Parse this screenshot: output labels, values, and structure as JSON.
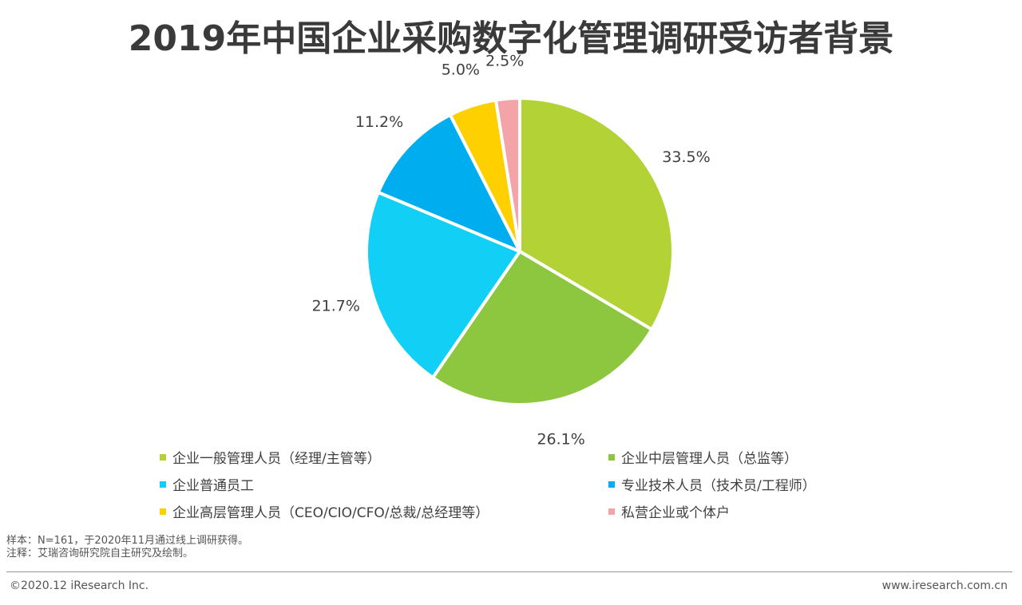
{
  "title": "2019年中国企业采购数字化管理调研受访者背景",
  "chart_data": {
    "type": "pie",
    "title": "2019年中国企业采购数字化管理调研受访者背景",
    "categories": [
      "企业一般管理人员（经理/主管等）",
      "企业中层管理人员（总监等）",
      "企业普通员工",
      "专业技术人员（技术员/工程师）",
      "企业高层管理人员（CEO/CIO/CFO/总裁/总经理等）",
      "私营企业或个体户"
    ],
    "values": [
      33.5,
      26.1,
      21.7,
      11.2,
      5.0,
      2.5
    ],
    "value_labels": [
      "33.5%",
      "26.1%",
      "21.7%",
      "11.2%",
      "5.0%",
      "2.5%"
    ],
    "colors": [
      "#B2D235",
      "#8DC63F",
      "#12D0F5",
      "#00AEEF",
      "#FFD000",
      "#F4A4A8"
    ],
    "start_angle": "12 o'clock",
    "direction": "clockwise",
    "legend_placement": "bottom"
  },
  "legend": {
    "items": [
      {
        "label": "企业一般管理人员（经理/主管等）",
        "color": "#B2D235"
      },
      {
        "label": "企业中层管理人员（总监等）",
        "color": "#8DC63F"
      },
      {
        "label": "企业普通员工",
        "color": "#12D0F5"
      },
      {
        "label": "专业技术人员（技术员/工程师）",
        "color": "#00AEEF"
      },
      {
        "label": "企业高层管理人员（CEO/CIO/CFO/总裁/总经理等）",
        "color": "#FFD000"
      },
      {
        "label": "私营企业或个体户",
        "color": "#F4A4A8"
      }
    ]
  },
  "notes": {
    "sample": "样本：N=161，于2020年11月通过线上调研获得。",
    "note": "注释：艾瑞咨询研究院自主研究及绘制。"
  },
  "footer": {
    "copyright": "©2020.12 iResearch Inc.",
    "website": "www.iresearch.com.cn"
  }
}
